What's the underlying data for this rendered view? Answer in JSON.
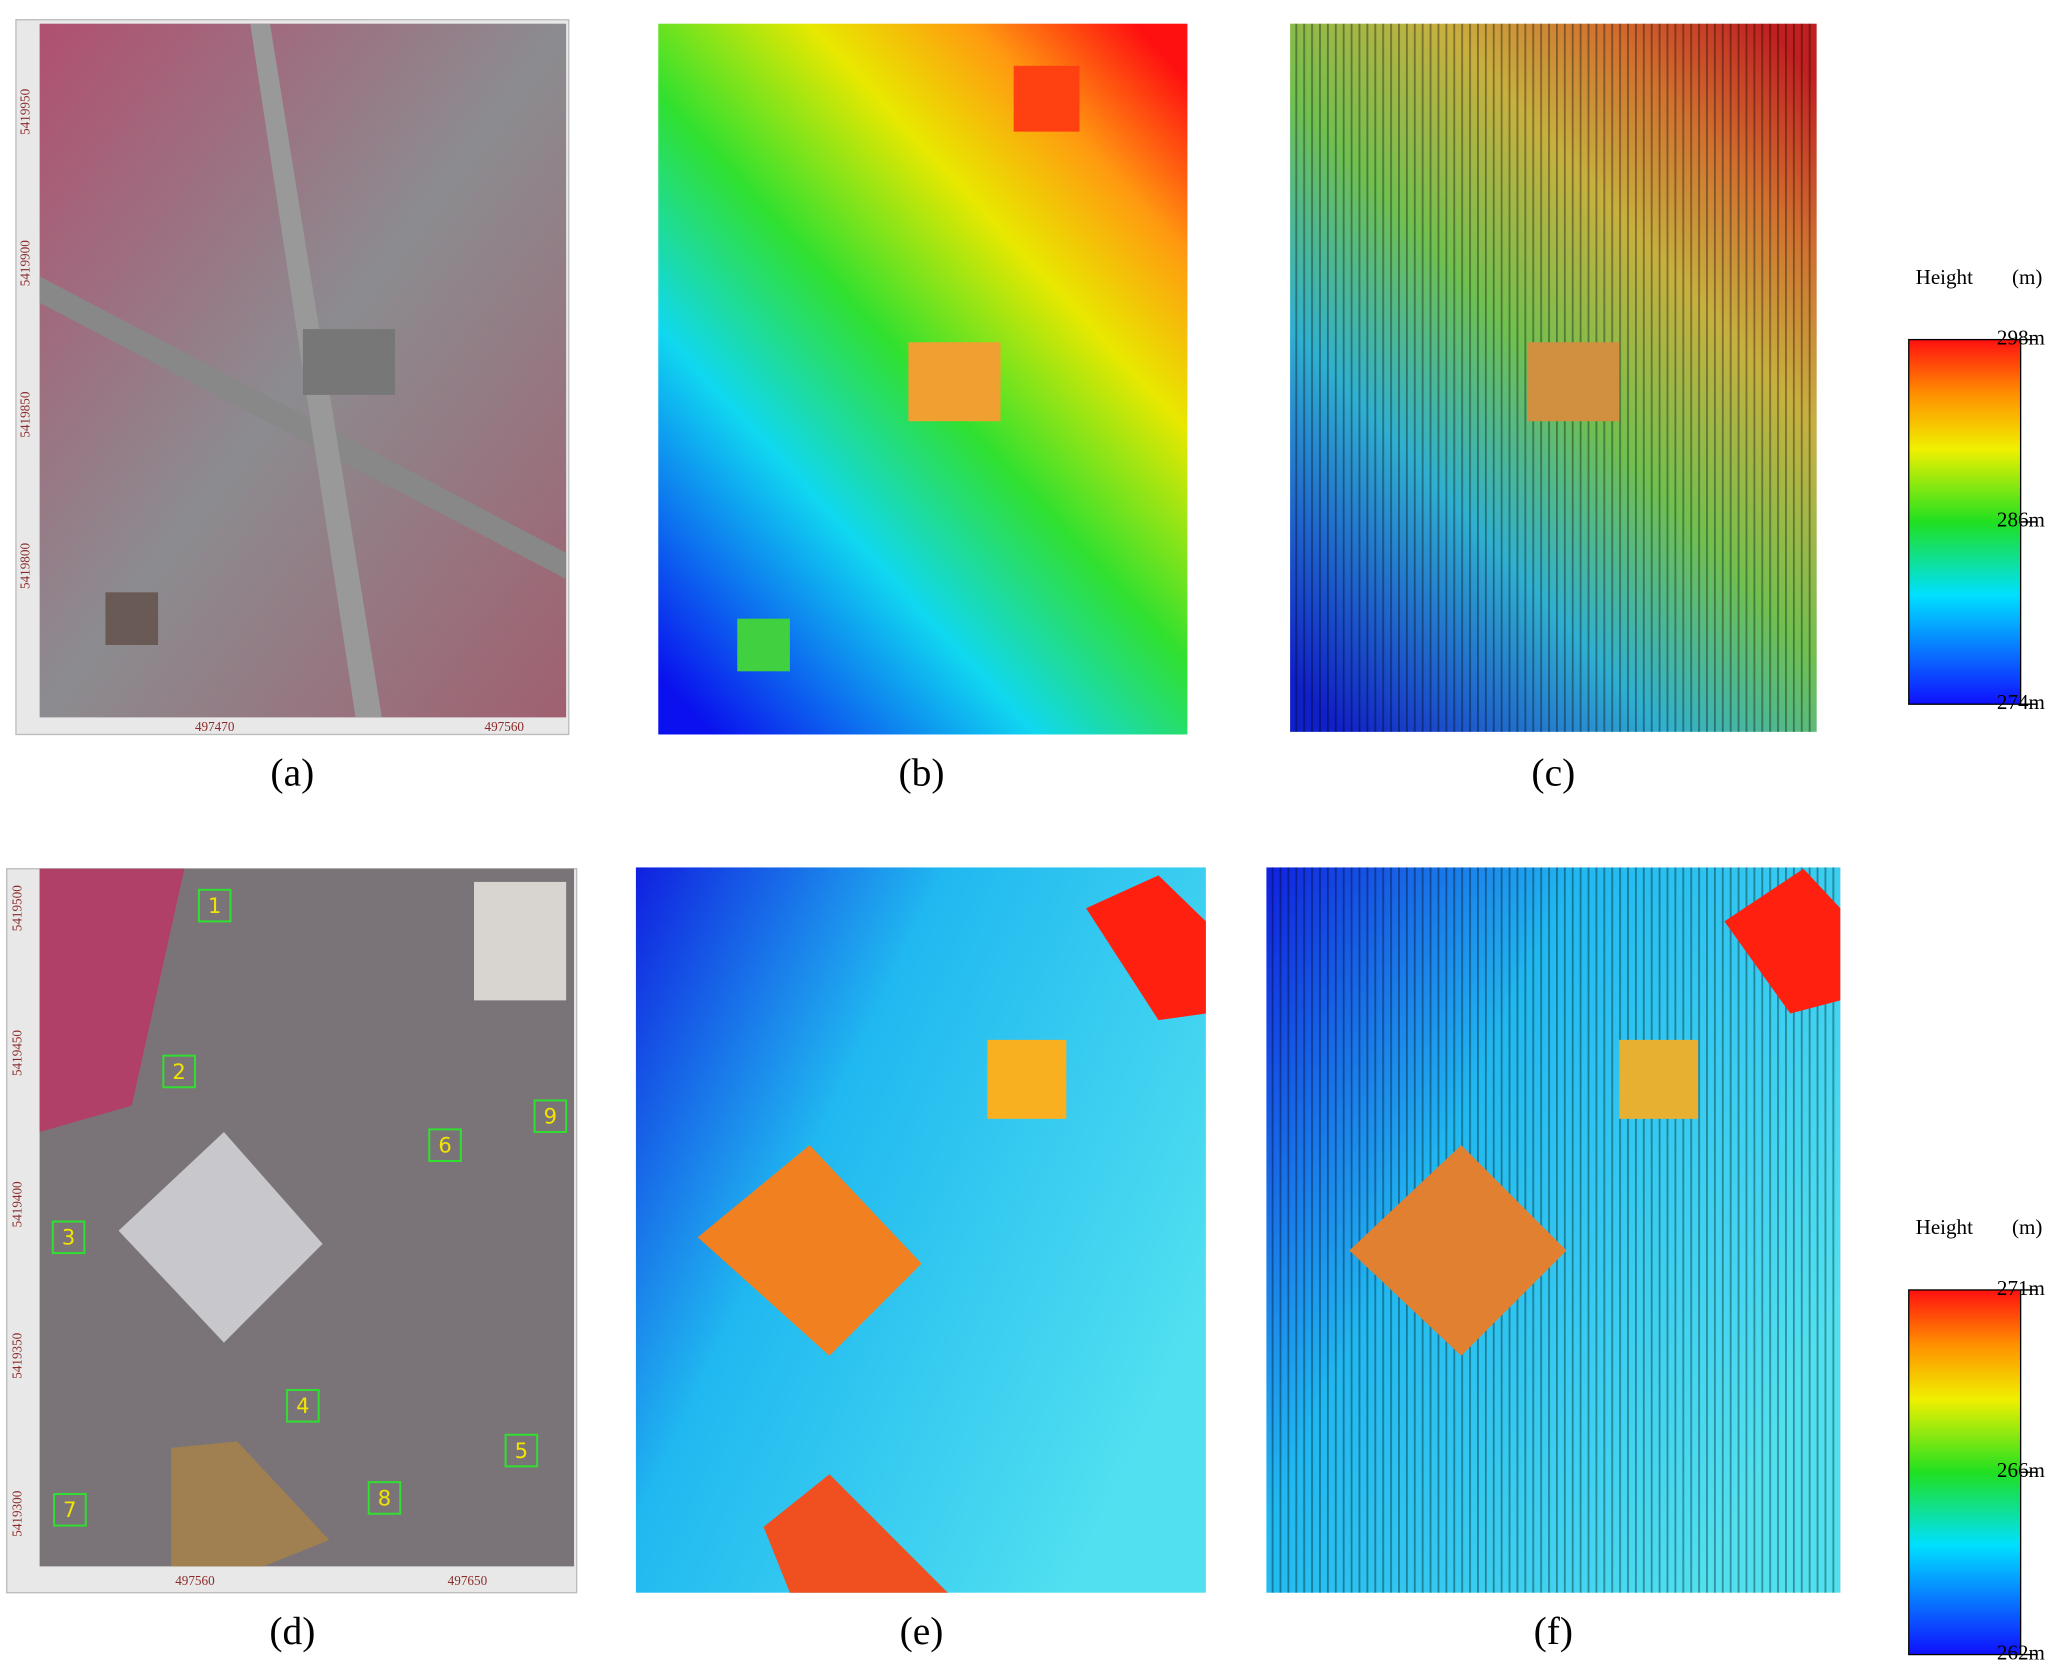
{
  "panels": [
    {
      "label": "(a)",
      "x_labels": [
        "497470",
        "497560"
      ],
      "y_labels": [
        "5419950",
        "5419900",
        "5419850",
        "5419800"
      ]
    },
    {
      "label": "(b)"
    },
    {
      "label": "(c)"
    },
    {
      "label": "(d)",
      "x_labels": [
        "497560",
        "497650"
      ],
      "y_labels": [
        "5419500",
        "5419450",
        "5419400",
        "5419350",
        "5419300"
      ],
      "markers": [
        "1",
        "2",
        "3",
        "4",
        "5",
        "6",
        "7",
        "8",
        "9"
      ]
    },
    {
      "label": "(e)"
    },
    {
      "label": "(f)"
    }
  ],
  "colorbars": [
    {
      "title": "Height",
      "unit": "(m)",
      "labels": [
        "298m",
        "286m",
        "274m"
      ]
    },
    {
      "title": "Height",
      "unit": "(m)",
      "labels": [
        "271m",
        "266m",
        "262m"
      ]
    }
  ]
}
